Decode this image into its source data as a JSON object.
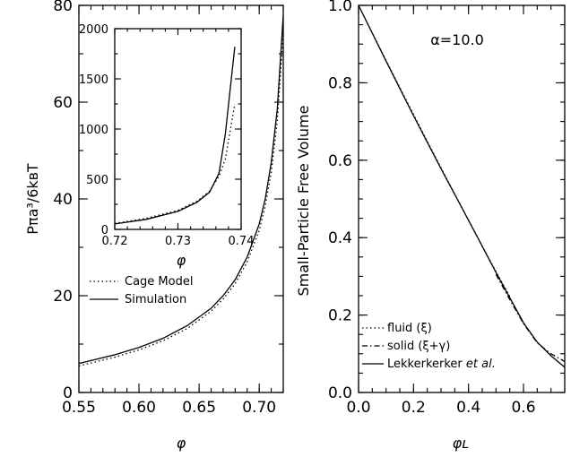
{
  "chart_data": [
    {
      "type": "line",
      "xlabel": "φ",
      "ylabel": "Pπa³/6kʙT",
      "xlim": [
        0.55,
        0.72
      ],
      "ylim": [
        0,
        80
      ],
      "xticks": [
        "0.55",
        "0.60",
        "0.65",
        "0.70"
      ],
      "yticks": [
        "0",
        "20",
        "40",
        "60",
        "80"
      ],
      "legend": "bottom-left",
      "series": [
        {
          "name": "Cage Model",
          "style": "dotted",
          "x": [
            0.55,
            0.58,
            0.6,
            0.62,
            0.64,
            0.66,
            0.67,
            0.68,
            0.69,
            0.7,
            0.705,
            0.71,
            0.715,
            0.72
          ],
          "y": [
            5.5,
            7.3,
            8.8,
            10.7,
            13.2,
            16.8,
            19.3,
            22.5,
            27.0,
            33.5,
            38.5,
            45.5,
            56.0,
            74.0
          ]
        },
        {
          "name": "Simulation",
          "style": "solid",
          "x": [
            0.55,
            0.58,
            0.6,
            0.62,
            0.64,
            0.66,
            0.67,
            0.68,
            0.69,
            0.7,
            0.705,
            0.71,
            0.715,
            0.72
          ],
          "y": [
            6.0,
            7.8,
            9.3,
            11.2,
            13.8,
            17.4,
            20.0,
            23.3,
            28.0,
            34.8,
            40.0,
            47.5,
            58.5,
            78.0
          ]
        }
      ],
      "inset": {
        "xlabel": "φ",
        "xlim": [
          0.72,
          0.74
        ],
        "ylim": [
          0,
          2000
        ],
        "xticks": [
          "0.72",
          "0.73",
          "0.74"
        ],
        "yticks": [
          "0",
          "500",
          "1000",
          "1500",
          "2000"
        ],
        "series": [
          {
            "name": "Cage Model",
            "style": "dotted",
            "x": [
              0.72,
              0.725,
              0.73,
              0.733,
              0.735,
              0.7365,
              0.7375,
              0.739
            ],
            "y": [
              60,
              110,
              190,
              280,
              380,
              530,
              700,
              1250
            ]
          },
          {
            "name": "Simulation",
            "style": "solid",
            "x": [
              0.72,
              0.725,
              0.73,
              0.733,
              0.735,
              0.7365,
              0.7375,
              0.739
            ],
            "y": [
              55,
              100,
              180,
              270,
              370,
              560,
              950,
              1820
            ]
          }
        ]
      }
    },
    {
      "type": "line",
      "xlabel": "φʟ",
      "ylabel": "Small-Particle Free Volume",
      "xlim": [
        0.0,
        0.75
      ],
      "ylim": [
        0.0,
        1.0
      ],
      "xticks": [
        "0.0",
        "0.2",
        "0.4",
        "0.6"
      ],
      "yticks": [
        "0.0",
        "0.2",
        "0.4",
        "0.6",
        "0.8",
        "1.0"
      ],
      "annotation": "α=10.0",
      "legend": "bottom-left",
      "series": [
        {
          "name": "fluid (ξ)",
          "style": "dotted",
          "x": [
            0.0,
            0.1,
            0.2,
            0.3,
            0.4,
            0.5,
            0.55
          ],
          "y": [
            1.0,
            0.858,
            0.718,
            0.58,
            0.445,
            0.312,
            0.248
          ]
        },
        {
          "name": "solid (ξ+γ)",
          "style": "dashdot",
          "x": [
            0.5,
            0.55,
            0.6,
            0.65,
            0.7,
            0.75
          ],
          "y": [
            0.305,
            0.24,
            0.178,
            0.128,
            0.1,
            0.08
          ]
        },
        {
          "name": "Lekkerkerker et al.",
          "style": "solid",
          "x": [
            0.0,
            0.1,
            0.2,
            0.3,
            0.4,
            0.5,
            0.6,
            0.65,
            0.7,
            0.75
          ],
          "y": [
            1.0,
            0.856,
            0.715,
            0.578,
            0.445,
            0.31,
            0.18,
            0.13,
            0.095,
            0.065
          ]
        }
      ]
    }
  ],
  "legend_text": {
    "left": {
      "cage": "Cage Model",
      "sim": "Simulation"
    },
    "right": {
      "fluid": "fluid (ξ)",
      "solid": "solid (ξ+γ)",
      "lek_main": "Lekkerkerker ",
      "lek_italic": "et al."
    }
  }
}
